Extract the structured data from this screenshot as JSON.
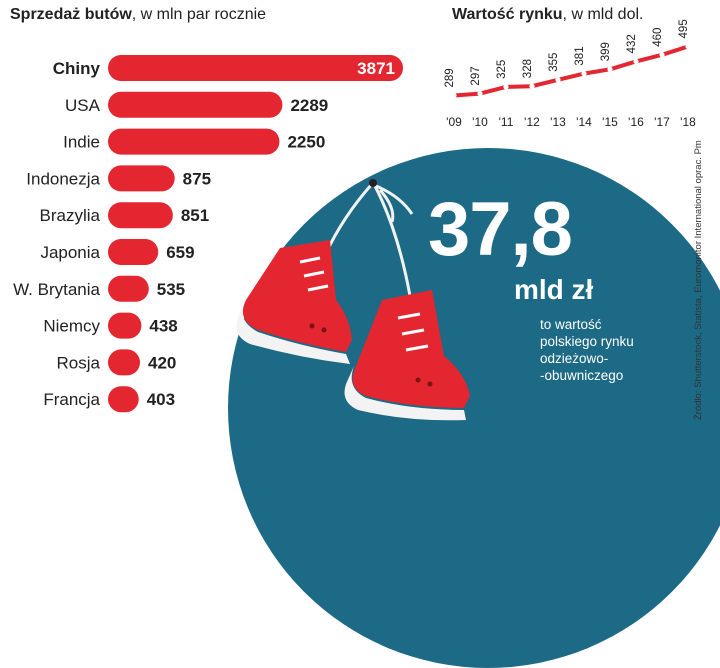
{
  "chart_data": [
    {
      "type": "bar",
      "title_bold": "Sprzedaż butów",
      "title_rest": ", w mln par rocznie",
      "categories": [
        "Chiny",
        "USA",
        "Indie",
        "Indonezja",
        "Brazylia",
        "Japonia",
        "W. Brytania",
        "Niemcy",
        "Rosja",
        "Francja"
      ],
      "values": [
        3871,
        2289,
        2250,
        875,
        851,
        659,
        535,
        438,
        420,
        403
      ],
      "value_labels": [
        "3871",
        "2289",
        "2250",
        "875",
        "851",
        "659",
        "535",
        "438",
        "420",
        "403"
      ],
      "orientation": "horizontal",
      "bar_color": "#e3262f",
      "highlight_category": "Chiny"
    },
    {
      "type": "line",
      "title_bold": "Wartość rynku",
      "title_rest": ", w mld dol.",
      "x": [
        "'09",
        "'10",
        "'11",
        "'12",
        "'13",
        "'14",
        "'15",
        "'16",
        "'17",
        "'18"
      ],
      "values": [
        289,
        297,
        325,
        328,
        355,
        381,
        399,
        432,
        460,
        495
      ],
      "value_labels": [
        "289",
        "297",
        "325",
        "328",
        "355",
        "381",
        "399",
        "432",
        "460",
        "495"
      ],
      "line_color": "#e3262f",
      "grid": false
    }
  ],
  "callout": {
    "number": "37,8",
    "unit": "mld zł",
    "lines": [
      "to wartość",
      "polskiego rynku",
      "odzieżowo-",
      "-obuwniczego"
    ]
  },
  "source": "Źródło: Shutterstock, Statista, Euromonitor International oprac. Pm",
  "colors": {
    "red": "#e3262f",
    "teal": "#1c6a86",
    "text": "#222222"
  }
}
